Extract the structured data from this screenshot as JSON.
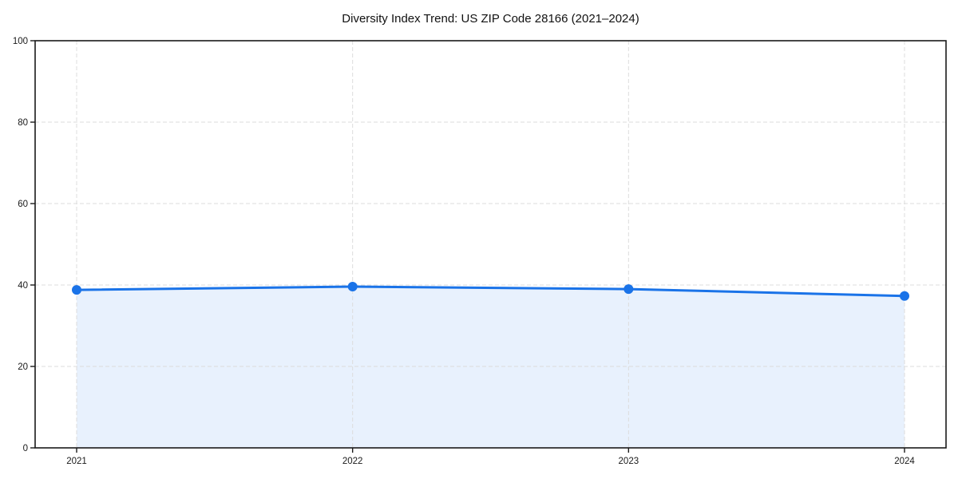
{
  "chart_data": {
    "type": "area",
    "title": "Diversity Index Trend: US ZIP Code 28166 (2021–2024)",
    "series_name": "Diversity Index",
    "categories": [
      "2021",
      "2022",
      "2023",
      "2024"
    ],
    "values": [
      38.8,
      39.6,
      39.0,
      37.3
    ],
    "xlabel": "",
    "ylabel": "",
    "ylim": [
      0,
      100
    ],
    "yticks": [
      0,
      20,
      40,
      60,
      80,
      100
    ],
    "grid": true,
    "grid_style": "dashed",
    "legend": false,
    "colors": {
      "line": "#1a73e8",
      "marker": "#1a73e8",
      "fill": "#e8f1fd",
      "grid": "#dcdcdc",
      "spine": "#1a1a1a",
      "tick_text": "#1a1a1a",
      "title_text": "#111111",
      "background": "#ffffff"
    }
  }
}
